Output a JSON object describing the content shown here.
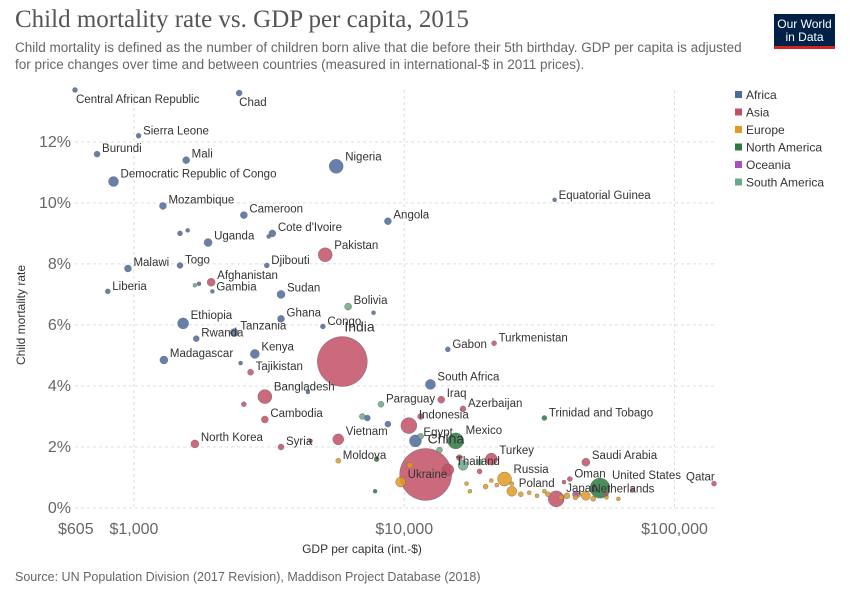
{
  "header": {
    "title": "Child mortality rate vs. GDP per capita, 2015",
    "subtitle": "Child mortality is defined as the number of children born alive that die before their 5th birthday. GDP per capita is adjusted for price changes over time and between countries (measured in international-$ in 2011 prices).",
    "logo_line1": "Our World",
    "logo_line2": "in Data"
  },
  "footer": {
    "source": "Source: UN Population Division (2017 Revision), Maddison Project Database (2018)"
  },
  "colors": {
    "Africa": "#4c6a9c",
    "Asia": "#c15065",
    "Europe": "#e29a20",
    "North America": "#2c7a3e",
    "Oceania": "#a652ba",
    "South America": "#6aa985"
  },
  "chart_data": {
    "type": "scatter",
    "title": "Child mortality rate vs. GDP per capita, 2015",
    "xlabel": "GDP per capita (int.-$)",
    "ylabel": "Child mortality rate",
    "xscale": "log",
    "xlim": [
      605,
      140000
    ],
    "ylim": [
      0,
      13.7
    ],
    "x_ticks": [
      {
        "value": 605,
        "label": "$605"
      },
      {
        "value": 1000,
        "label": "$1,000"
      },
      {
        "value": 10000,
        "label": "$10,000"
      },
      {
        "value": 100000,
        "label": "$100,000"
      }
    ],
    "y_ticks": [
      {
        "value": 0,
        "label": "0%"
      },
      {
        "value": 2,
        "label": "2%"
      },
      {
        "value": 4,
        "label": "4%"
      },
      {
        "value": 6,
        "label": "6%"
      },
      {
        "value": 8,
        "label": "8%"
      },
      {
        "value": 10,
        "label": "10%"
      },
      {
        "value": 12,
        "label": "12%"
      }
    ],
    "grid": true,
    "legend_position": "right",
    "legend": [
      "Africa",
      "Asia",
      "Europe",
      "North America",
      "Oceania",
      "South America"
    ],
    "points": [
      {
        "label": "Central African Republic",
        "region": "Africa",
        "x": 605,
        "y": 13.7,
        "r": 2.5
      },
      {
        "label": "Chad",
        "region": "Africa",
        "x": 2450,
        "y": 13.6,
        "r": 3
      },
      {
        "label": "Sierra Leone",
        "region": "Africa",
        "x": 1040,
        "y": 12.2,
        "r": 2.5
      },
      {
        "label": "Burundi",
        "region": "Africa",
        "x": 730,
        "y": 11.6,
        "r": 3
      },
      {
        "label": "Mali",
        "region": "Africa",
        "x": 1560,
        "y": 11.4,
        "r": 3.5
      },
      {
        "label": "Nigeria",
        "region": "Africa",
        "x": 5600,
        "y": 11.2,
        "r": 7
      },
      {
        "label": "Democratic Republic of Congo",
        "region": "Africa",
        "x": 840,
        "y": 10.7,
        "r": 5
      },
      {
        "label": "Equatorial Guinea",
        "region": "Africa",
        "x": 36000,
        "y": 10.1,
        "r": 2
      },
      {
        "label": "Mozambique",
        "region": "Africa",
        "x": 1280,
        "y": 9.9,
        "r": 3.5
      },
      {
        "label": "Cameroon",
        "region": "Africa",
        "x": 2550,
        "y": 9.6,
        "r": 3.5
      },
      {
        "label": "Angola",
        "region": "Africa",
        "x": 8700,
        "y": 9.4,
        "r": 3.5
      },
      {
        "label": "Cote d'Ivoire",
        "region": "Africa",
        "x": 3250,
        "y": 9.0,
        "r": 3.5
      },
      {
        "label": "Uganda",
        "region": "Africa",
        "x": 1880,
        "y": 8.7,
        "r": 4
      },
      {
        "label": "Pakistan",
        "region": "Asia",
        "x": 5100,
        "y": 8.3,
        "r": 7
      },
      {
        "label": "Djibouti",
        "region": "Africa",
        "x": 3100,
        "y": 7.95,
        "r": 2.5
      },
      {
        "label": "Malawi",
        "region": "Africa",
        "x": 950,
        "y": 7.85,
        "r": 3.5
      },
      {
        "label": "Togo",
        "region": "Africa",
        "x": 1480,
        "y": 7.95,
        "r": 3
      },
      {
        "label": "Afghanistan",
        "region": "Asia",
        "x": 1930,
        "y": 7.4,
        "r": 4
      },
      {
        "label": "Liberia",
        "region": "Africa",
        "x": 800,
        "y": 7.1,
        "r": 2.5
      },
      {
        "label": "Gambia",
        "region": "Africa",
        "x": 1950,
        "y": 7.1,
        "r": 2
      },
      {
        "label": "Sudan",
        "region": "Africa",
        "x": 3500,
        "y": 7.0,
        "r": 4
      },
      {
        "label": "Bolivia",
        "region": "South America",
        "x": 6200,
        "y": 6.6,
        "r": 3.5
      },
      {
        "label": "Ghana",
        "region": "Africa",
        "x": 3500,
        "y": 6.2,
        "r": 3.5
      },
      {
        "label": "Ethiopia",
        "region": "Africa",
        "x": 1520,
        "y": 6.05,
        "r": 5.5
      },
      {
        "label": "Congo",
        "region": "Africa",
        "x": 5000,
        "y": 5.95,
        "r": 2.5
      },
      {
        "label": "Tanzania",
        "region": "Africa",
        "x": 2350,
        "y": 5.75,
        "r": 4
      },
      {
        "label": "Rwanda",
        "region": "Africa",
        "x": 1700,
        "y": 5.55,
        "r": 3
      },
      {
        "label": "India",
        "region": "Asia",
        "x": 5900,
        "y": 4.8,
        "r": 25
      },
      {
        "label": "Gabon",
        "region": "Africa",
        "x": 14500,
        "y": 5.2,
        "r": 2.5
      },
      {
        "label": "Turkmenistan",
        "region": "Asia",
        "x": 21500,
        "y": 5.4,
        "r": 2.5
      },
      {
        "label": "Kenya",
        "region": "Africa",
        "x": 2800,
        "y": 5.05,
        "r": 4.5
      },
      {
        "label": "Madagascar",
        "region": "Africa",
        "x": 1290,
        "y": 4.85,
        "r": 4
      },
      {
        "label": "Tajikistan",
        "region": "Asia",
        "x": 2700,
        "y": 4.45,
        "r": 3
      },
      {
        "label": "South Africa",
        "region": "Africa",
        "x": 12500,
        "y": 4.05,
        "r": 5
      },
      {
        "label": "Bangladesh",
        "region": "Asia",
        "x": 3050,
        "y": 3.65,
        "r": 7
      },
      {
        "label": "Iraq",
        "region": "Asia",
        "x": 13700,
        "y": 3.55,
        "r": 3.5
      },
      {
        "label": "Azerbaijan",
        "region": "Asia",
        "x": 16500,
        "y": 3.25,
        "r": 3
      },
      {
        "label": "Paraguay",
        "region": "South America",
        "x": 8200,
        "y": 3.4,
        "r": 3
      },
      {
        "label": "Trinidad and Tobago",
        "region": "North America",
        "x": 33000,
        "y": 2.95,
        "r": 2.5
      },
      {
        "label": "Cambodia",
        "region": "Asia",
        "x": 3050,
        "y": 2.9,
        "r": 3.5
      },
      {
        "label": "Indonesia",
        "region": "Asia",
        "x": 10400,
        "y": 2.7,
        "r": 8
      },
      {
        "label": "Vietnam",
        "region": "Asia",
        "x": 5700,
        "y": 2.25,
        "r": 5.5
      },
      {
        "label": "Egypt",
        "region": "Africa",
        "x": 11000,
        "y": 2.2,
        "r": 6
      },
      {
        "label": "Mexico",
        "region": "North America",
        "x": 15500,
        "y": 2.2,
        "r": 8
      },
      {
        "label": "North Korea",
        "region": "Asia",
        "x": 1680,
        "y": 2.1,
        "r": 4
      },
      {
        "label": "Syria",
        "region": "Asia",
        "x": 3500,
        "y": 2.0,
        "r": 3
      },
      {
        "label": "China",
        "region": "Asia",
        "x": 12000,
        "y": 1.1,
        "r": 26
      },
      {
        "label": "Moldova",
        "region": "Europe",
        "x": 5700,
        "y": 1.55,
        "r": 2.5
      },
      {
        "label": "Turkey",
        "region": "Asia",
        "x": 21000,
        "y": 1.6,
        "r": 6
      },
      {
        "label": "Thailand",
        "region": "Asia",
        "x": 14500,
        "y": 1.25,
        "r": 6
      },
      {
        "label": "Saudi Arabia",
        "region": "Asia",
        "x": 47000,
        "y": 1.5,
        "r": 4
      },
      {
        "label": "Ukraine",
        "region": "Europe",
        "x": 9700,
        "y": 0.85,
        "r": 5
      },
      {
        "label": "Russia",
        "region": "Europe",
        "x": 23500,
        "y": 0.95,
        "r": 7
      },
      {
        "label": "Oman",
        "region": "Asia",
        "x": 41000,
        "y": 0.95,
        "r": 2.5
      },
      {
        "label": "Poland",
        "region": "Europe",
        "x": 25000,
        "y": 0.55,
        "r": 5
      },
      {
        "label": "United States",
        "region": "North America",
        "x": 53000,
        "y": 0.65,
        "r": 10
      },
      {
        "label": "Qatar",
        "region": "Asia",
        "x": 140000,
        "y": 0.8,
        "r": 2.5
      },
      {
        "label": "Japan",
        "region": "Asia",
        "x": 36500,
        "y": 0.3,
        "r": 8
      },
      {
        "label": "Netherlands",
        "region": "Europe",
        "x": 47000,
        "y": 0.4,
        "r": 4.5
      }
    ],
    "minor_points": [
      {
        "region": "Africa",
        "x": 1580,
        "y": 9.1,
        "r": 2
      },
      {
        "region": "Africa",
        "x": 1480,
        "y": 9.0,
        "r": 2.5
      },
      {
        "region": "Africa",
        "x": 3150,
        "y": 8.9,
        "r": 2
      },
      {
        "region": "South America",
        "x": 1680,
        "y": 7.3,
        "r": 2
      },
      {
        "region": "Africa",
        "x": 1740,
        "y": 7.35,
        "r": 2
      },
      {
        "region": "Africa",
        "x": 7700,
        "y": 6.4,
        "r": 2
      },
      {
        "region": "Africa",
        "x": 2480,
        "y": 4.75,
        "r": 2
      },
      {
        "region": "Asia",
        "x": 2550,
        "y": 3.4,
        "r": 2.5
      },
      {
        "region": "Africa",
        "x": 4400,
        "y": 3.8,
        "r": 2
      },
      {
        "region": "Asia",
        "x": 4500,
        "y": 2.2,
        "r": 2
      },
      {
        "region": "Africa",
        "x": 7300,
        "y": 2.95,
        "r": 3
      },
      {
        "region": "South America",
        "x": 7000,
        "y": 3.0,
        "r": 3
      },
      {
        "region": "Africa",
        "x": 8700,
        "y": 2.75,
        "r": 3
      },
      {
        "region": "Asia",
        "x": 11500,
        "y": 3.0,
        "r": 3
      },
      {
        "region": "South America",
        "x": 11500,
        "y": 2.35,
        "r": 3
      },
      {
        "region": "South America",
        "x": 13500,
        "y": 1.9,
        "r": 3
      },
      {
        "region": "North America",
        "x": 7900,
        "y": 1.6,
        "r": 2.5
      },
      {
        "region": "Europe",
        "x": 10500,
        "y": 1.4,
        "r": 3
      },
      {
        "region": "Asia",
        "x": 16000,
        "y": 1.65,
        "r": 3
      },
      {
        "region": "South America",
        "x": 16500,
        "y": 1.4,
        "r": 5
      },
      {
        "region": "South America",
        "x": 19000,
        "y": 1.5,
        "r": 3
      },
      {
        "region": "Asia",
        "x": 19000,
        "y": 1.2,
        "r": 2.5
      },
      {
        "region": "Europe",
        "x": 17000,
        "y": 0.8,
        "r": 2
      },
      {
        "region": "Europe",
        "x": 17500,
        "y": 0.55,
        "r": 2
      },
      {
        "region": "Europe",
        "x": 20000,
        "y": 0.7,
        "r": 2.5
      },
      {
        "region": "Europe",
        "x": 22000,
        "y": 0.75,
        "r": 2
      },
      {
        "region": "Europe",
        "x": 25000,
        "y": 0.8,
        "r": 2
      },
      {
        "region": "Europe",
        "x": 27000,
        "y": 0.45,
        "r": 2.5
      },
      {
        "region": "Europe",
        "x": 29000,
        "y": 0.5,
        "r": 2
      },
      {
        "region": "Europe",
        "x": 31000,
        "y": 0.4,
        "r": 2
      },
      {
        "region": "Europe",
        "x": 34000,
        "y": 0.45,
        "r": 2.5
      },
      {
        "region": "Europe",
        "x": 38000,
        "y": 0.35,
        "r": 2.5
      },
      {
        "region": "Europe",
        "x": 40000,
        "y": 0.4,
        "r": 3
      },
      {
        "region": "Europe",
        "x": 43000,
        "y": 0.35,
        "r": 2.5
      },
      {
        "region": "Europe",
        "x": 44000,
        "y": 0.45,
        "r": 3
      },
      {
        "region": "Europe",
        "x": 50000,
        "y": 0.3,
        "r": 2.5
      },
      {
        "region": "Europe",
        "x": 56000,
        "y": 0.35,
        "r": 2
      },
      {
        "region": "Europe",
        "x": 62000,
        "y": 0.3,
        "r": 2
      },
      {
        "region": "Asia",
        "x": 56000,
        "y": 0.45,
        "r": 2
      },
      {
        "region": "Asia",
        "x": 70000,
        "y": 0.6,
        "r": 2
      },
      {
        "region": "Oceania",
        "x": 43000,
        "y": 0.45,
        "r": 3
      },
      {
        "region": "Europe",
        "x": 33000,
        "y": 0.55,
        "r": 2
      },
      {
        "region": "North America",
        "x": 7800,
        "y": 0.55,
        "r": 2
      },
      {
        "region": "Europe",
        "x": 21000,
        "y": 0.9,
        "r": 2
      },
      {
        "region": "Asia",
        "x": 39000,
        "y": 0.85,
        "r": 2
      }
    ]
  }
}
